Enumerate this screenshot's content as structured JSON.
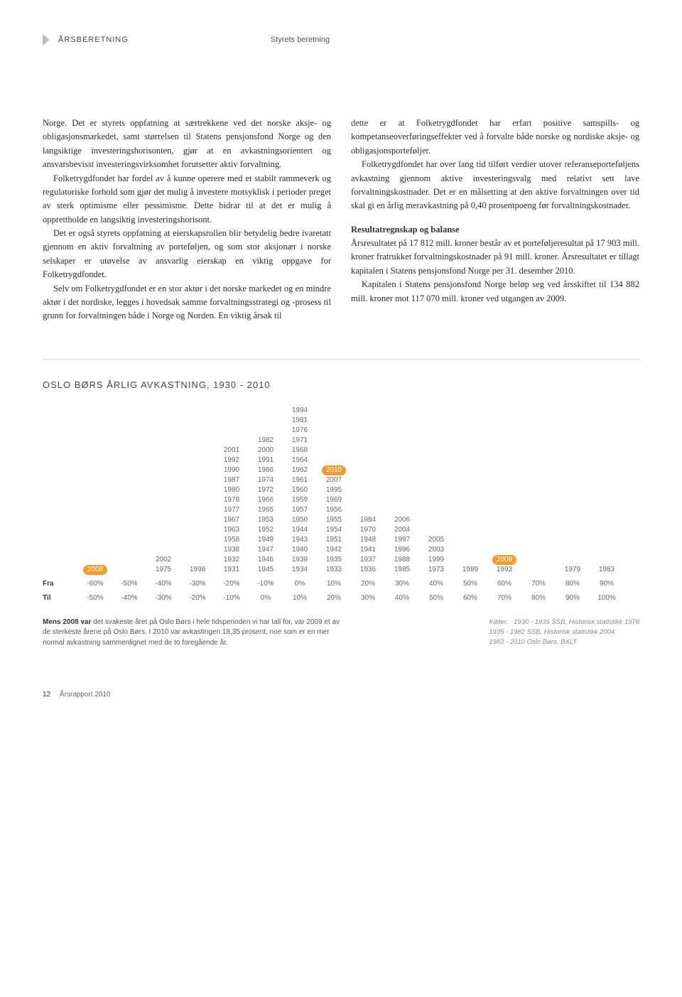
{
  "header": {
    "section": "ÅRSBERETNING",
    "subsection": "Styrets beretning"
  },
  "column1": {
    "p1": "Norge. Det er styrets oppfatning at særtrekkene ved det norske aksje- og obligasjonsmarkedet, samt størrelsen til Statens pensjonsfond Norge og den langsiktige investeringshorisonten, gjør at en avkastningsorientert og ansvarsbevisst investeringsvirksomhet forutsetter aktiv forvaltning.",
    "p2": "Folketrygdfondet har fordel av å kunne operere med et stabilt rammeverk og regulatoriske forhold som gjør det mulig å investere motsyklisk i perioder preget av sterk optimisme eller pessimisme. Dette bidrar til at det er mulig å opprettholde en langsiktig investeringshorisont.",
    "p3": "Det er også styrets oppfatning at eierskapsrollen blir betydelig bedre ivaretatt gjennom en aktiv forvaltning av porteføljen, og som stor aksjonær i norske selskaper er utøvelse av ansvarlig eierskap en viktig oppgave for Folketrygdfondet.",
    "p4": "Selv om Folketrygdfondet er en stor aktør i det norske markedet og en mindre aktør i det nordiske, legges i hovedsak samme forvaltningsstrategi og -prosess til grunn for forvaltningen både i Norge og Norden. En viktig årsak til"
  },
  "column2": {
    "p1": "dette er at Folketrygdfondet har erfart positive samspills- og kompetanseoverføringseffekter ved å forvalte både norske og nordiske aksje- og obligasjonsporteføljer.",
    "p2": "Folketrygdfondet har over lang tid tilført verdier utover referanseporteføljens avkastning gjennom aktive investeringsvalg med relativt sett lave forvaltningskostnader. Det er en målsetting at den aktive forvaltningen over tid skal gi en årlig meravkastning på 0,40 prosentpoeng før forvaltningskostnader.",
    "subhead": "Resultatregnskap og balanse",
    "p3": "Årsresultatet på 17 812 mill. kroner består av et porteføljeresultat på 17 903 mill. kroner fratrukket forvaltningskostnader på 91 mill. kroner. Årsresultatet er tillagt kapitalen i Statens pensjonsfond Norge per 31. desember 2010.",
    "p4": "Kapitalen i Statens pensjonsfond Norge beløp seg ved årsskiftet til 134 882 mill. kroner mot 117 070 mill. kroner ved utgangen av 2009."
  },
  "chart": {
    "title": "OSLO BØRS ÅRLIG AVKASTNING, 1930 - 2010",
    "highlight_pills": [
      "2008",
      "2010",
      "2009"
    ],
    "pill_bg": "#f39c2d",
    "pill_fg": "#ffffff",
    "text_color": "#666666",
    "font_size": 10,
    "columns": [
      {
        "bin": "-60%/-50%",
        "years": [
          "2008"
        ]
      },
      {
        "bin": "-50%/-40%",
        "years": []
      },
      {
        "bin": "-40%/-30%",
        "years": [
          "2002",
          "1975"
        ]
      },
      {
        "bin": "-30%/-20%",
        "years": [
          "1998"
        ]
      },
      {
        "bin": "-20%/-10%",
        "years": [
          "2001",
          "1992",
          "1990",
          "1987",
          "1980",
          "1978",
          "1977",
          "1967",
          "1963",
          "1958",
          "1938",
          "1932",
          "1931"
        ]
      },
      {
        "bin": "-10%/0%",
        "years": [
          "1982",
          "2000",
          "1991",
          "1986",
          "1974",
          "1972",
          "1966",
          "1965",
          "1953",
          "1952",
          "1949",
          "1947",
          "1946",
          "1945"
        ]
      },
      {
        "bin": "0%/10%",
        "years": [
          "1994",
          "1981",
          "1976",
          "1971",
          "1968",
          "1964",
          "1962",
          "1961",
          "1960",
          "1959",
          "1957",
          "1950",
          "1944",
          "1943",
          "1940",
          "1939",
          "1934"
        ]
      },
      {
        "bin": "10%/20%",
        "years": [
          "2010",
          "2007",
          "1995",
          "1969",
          "1956",
          "1955",
          "1954",
          "1951",
          "1942",
          "1935",
          "1933"
        ]
      },
      {
        "bin": "20%/30%",
        "years": [
          "1984",
          "1970",
          "1948",
          "1941",
          "1937",
          "1936"
        ]
      },
      {
        "bin": "30%/40%",
        "years": [
          "2006",
          "2004",
          "1997",
          "1996",
          "1988",
          "1985"
        ]
      },
      {
        "bin": "40%/50%",
        "years": [
          "2005",
          "2003",
          "1999",
          "1973"
        ]
      },
      {
        "bin": "50%/60%",
        "years": [
          "1989"
        ]
      },
      {
        "bin": "60%/70%",
        "years": [
          "2009",
          "1993"
        ]
      },
      {
        "bin": "70%/80%",
        "years": []
      },
      {
        "bin": "80%/90%",
        "years": [
          "1979"
        ]
      },
      {
        "bin": "90%/100%",
        "years": [
          "1983"
        ]
      }
    ],
    "axis": {
      "fra_label": "Fra",
      "til_label": "Til",
      "fra": [
        "-60%",
        "-50%",
        "-40%",
        "-30%",
        "-20%",
        "-10%",
        "0%",
        "10%",
        "20%",
        "30%",
        "40%",
        "50%",
        "60%",
        "70%",
        "80%",
        "90%"
      ],
      "til": [
        "-50%",
        "-40%",
        "-30%",
        "-20%",
        "-10%",
        "0%",
        "10%",
        "20%",
        "30%",
        "40%",
        "50%",
        "60%",
        "70%",
        "80%",
        "90%",
        "100%"
      ]
    },
    "note_bold": "Mens 2008 var",
    "note_rest": " det svakeste året på Oslo Børs i hele tidsperioden vi har tall for, var 2009 et av de sterkeste årene på Oslo Børs. I 2010 var avkastingen 18,35 prosent, noe som er en mer normal avkastning sammenlignet med de to foregående år.",
    "sources_label": "Kilder:",
    "sources": [
      "1930 - 1935 SSB, Historisk statistikk 1978",
      "1935 - 1982 SSB, Historisk statistikk 2004",
      "1983 - 2010 Oslo Børs, BXLT"
    ]
  },
  "footer": {
    "page_number": "12",
    "doc_title": "Årsrapport 2010"
  }
}
